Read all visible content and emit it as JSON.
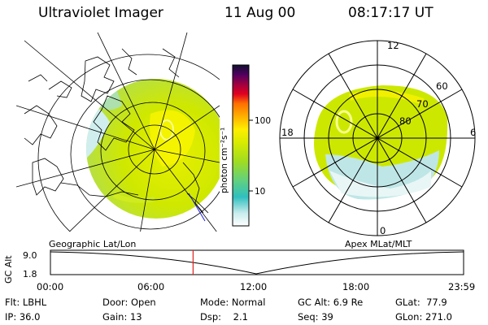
{
  "header": {
    "instrument": "Ultraviolet Imager",
    "date": "11 Aug 00",
    "time": "08:17:17 UT"
  },
  "left_panel": {
    "caption": "Geographic Lat/Lon"
  },
  "colorbar": {
    "unit_label": "photon cm⁻²s⁻¹",
    "ticks": [
      "100",
      "10"
    ],
    "scale": "log"
  },
  "polar_panel": {
    "caption": "Apex MLat/MLT",
    "mlt_labels": {
      "top": "12",
      "left": "18",
      "right": "6",
      "bottom": "0"
    },
    "mlat_labels": [
      "60",
      "70",
      "80"
    ]
  },
  "timeline": {
    "ylabel": "GC Alt",
    "y_ticks": [
      "9.0",
      "1.8"
    ],
    "x_ticks": [
      "00:00",
      "06:00",
      "12:00",
      "18:00",
      "23:59"
    ],
    "current_time_fraction": 0.3453
  },
  "info": {
    "filter_label": "Flt:",
    "filter_value": "LBHL",
    "ip_label": "IP:",
    "ip_value": "36.0",
    "door_label": "Door:",
    "door_value": "Open",
    "gain_label": "Gain:",
    "gain_value": "13",
    "mode_label": "Mode:",
    "mode_value": "Normal",
    "dsp_label": "Dsp:",
    "dsp_value": "2.1",
    "gcalt_label": "GC Alt:",
    "gcalt_value": "6.9 Re",
    "seq_label": "Seq:",
    "seq_value": "39",
    "glat_label": "GLat:",
    "glat_value": "77.9",
    "glon_label": "GLon:",
    "glon_value": "271.0"
  },
  "colors": {
    "green": "#c8e600",
    "yellow": "#f5f000",
    "cyan": "#40c8c8",
    "lightcyan": "#bfe6e6",
    "bright": "#f0ff60"
  }
}
